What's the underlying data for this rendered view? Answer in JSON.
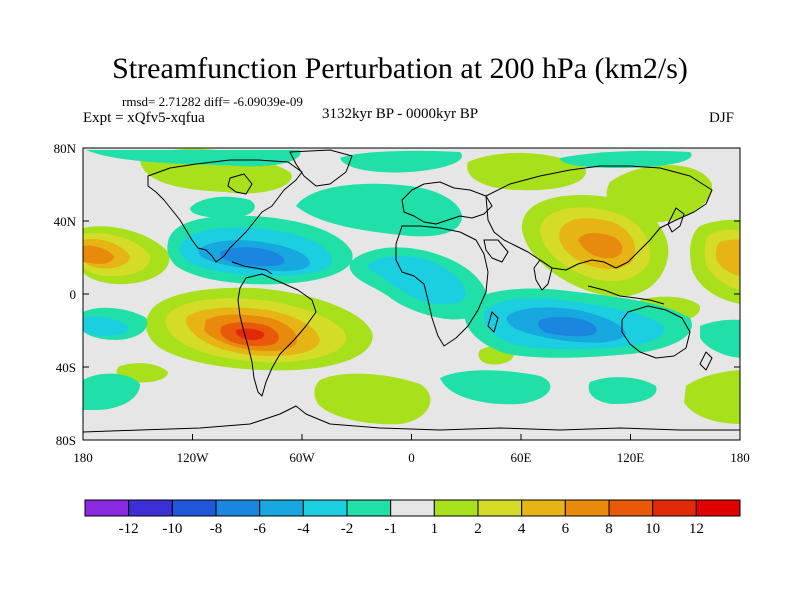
{
  "title": "Streamfunction Perturbation at 200 hPa (km2/s)",
  "stats": "rmsd= 2.71282 diff= -6.09039e-09",
  "experiment": "Expt = xQfv5-xqfua",
  "period": "3132kyr BP - 0000kyr BP",
  "season": "DJF",
  "lat_ticks": [
    "80N",
    "40N",
    "0",
    "40S",
    "80S"
  ],
  "lon_ticks": [
    "180",
    "120W",
    "60W",
    "0",
    "60E",
    "120E",
    "180"
  ],
  "colorbar": {
    "labels": [
      "-12",
      "-10",
      "-8",
      "-6",
      "-4",
      "-2",
      "-1",
      "1",
      "2",
      "4",
      "6",
      "8",
      "10",
      "12"
    ],
    "colors": [
      "#8a2be2",
      "#3c2fd6",
      "#2057d8",
      "#1a86e0",
      "#18a8e0",
      "#1ccfe0",
      "#20e0a8",
      "#e6e6e6",
      "#a8e01c",
      "#d4dc28",
      "#e6b414",
      "#e88a0c",
      "#e85a0a",
      "#e02a0a",
      "#e00000"
    ]
  }
}
